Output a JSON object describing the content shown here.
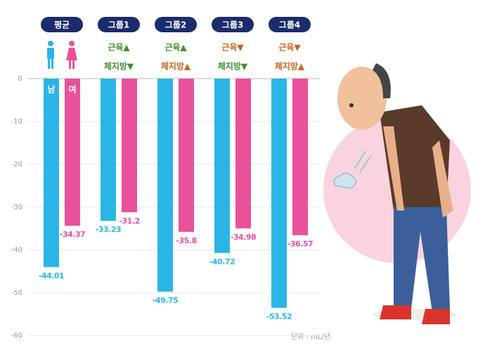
{
  "chart_data": {
    "type": "bar",
    "categories": [
      "평균",
      "그룹1",
      "그룹2",
      "그룹3",
      "그룹4"
    ],
    "notes": [
      null,
      [
        {
          "text": "근육▲",
          "color": "#3f8f2a"
        },
        {
          "text": "체지방▼",
          "color": "#3f8f2a"
        }
      ],
      [
        {
          "text": "근육▲",
          "color": "#3f8f2a"
        },
        {
          "text": "체지방▲",
          "color": "#c8641e"
        }
      ],
      [
        {
          "text": "근육▼",
          "color": "#c8641e"
        },
        {
          "text": "체지방▼",
          "color": "#3f8f2a"
        }
      ],
      [
        {
          "text": "근육▼",
          "color": "#c8641e"
        },
        {
          "text": "체지방▲",
          "color": "#c8641e"
        }
      ]
    ],
    "series": [
      {
        "name": "남",
        "color": "#2bb5e6",
        "values": [
          -44.01,
          -33.23,
          -49.75,
          -40.72,
          -53.52
        ]
      },
      {
        "name": "여",
        "color": "#e9529b",
        "values": [
          -34.37,
          -31.2,
          -35.8,
          -34.98,
          -36.57
        ]
      }
    ],
    "ylim": [
      0,
      -60
    ],
    "yticks": [
      0,
      -10,
      -20,
      -30,
      -40,
      -50,
      -60
    ],
    "grid": true,
    "unit": "단위 : mL/년"
  }
}
